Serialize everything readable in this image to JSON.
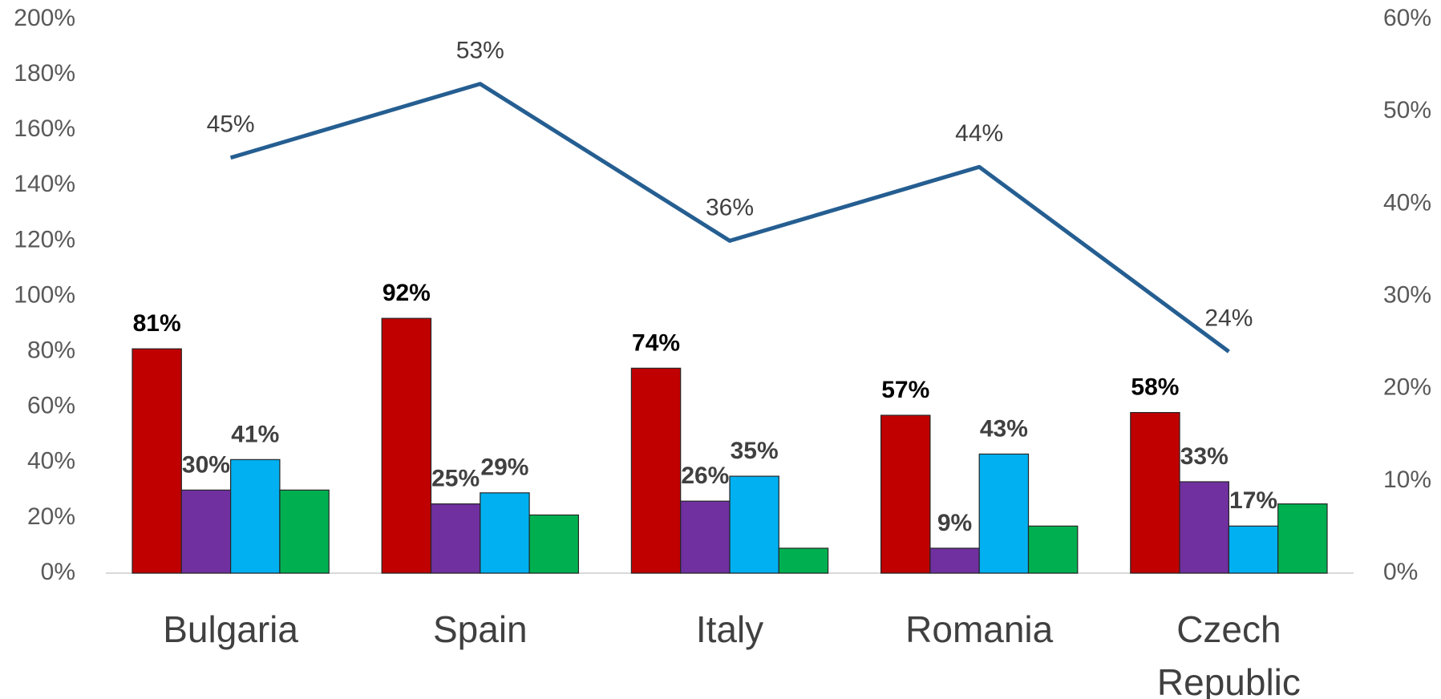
{
  "chart_data": {
    "type": "bar",
    "categories": [
      "Bulgaria",
      "Spain",
      "Italy",
      "Romania",
      "Czech Republic"
    ],
    "series": [
      {
        "color": "#c00000",
        "values": [
          81,
          92,
          74,
          57,
          58
        ],
        "value_labels": [
          "81%",
          "92%",
          "74%",
          "57%",
          "58%"
        ]
      },
      {
        "color": "#7030a0",
        "values": [
          30,
          25,
          26,
          9,
          33
        ],
        "value_labels": [
          "30%",
          "25%",
          "26%",
          "9%",
          "33%"
        ]
      },
      {
        "color": "#00b0f0",
        "values": [
          41,
          29,
          35,
          43,
          17
        ],
        "value_labels": [
          "41%",
          "29%",
          "35%",
          "43%",
          "17%"
        ]
      },
      {
        "color": "#00b050",
        "values": [
          30,
          21,
          9,
          17,
          25
        ]
      },
      {
        "type": "line",
        "axis": "y2",
        "color": "#255e91",
        "values": [
          45,
          53,
          36,
          44,
          24
        ],
        "value_labels": [
          "45%",
          "53%",
          "36%",
          "44%",
          "24%"
        ]
      }
    ],
    "ylim": [
      0,
      200
    ],
    "yticks": [
      {
        "value": 0,
        "label": "0%"
      },
      {
        "value": 20,
        "label": "20%"
      },
      {
        "value": 40,
        "label": "40%"
      },
      {
        "value": 60,
        "label": "60%"
      },
      {
        "value": 80,
        "label": "80%"
      },
      {
        "value": 100,
        "label": "100%"
      },
      {
        "value": 120,
        "label": "120%"
      },
      {
        "value": 140,
        "label": "140%"
      },
      {
        "value": 160,
        "label": "160%"
      },
      {
        "value": 180,
        "label": "180%"
      },
      {
        "value": 200,
        "label": "200%"
      }
    ],
    "y2lim": [
      0,
      60
    ],
    "y2ticks": [
      {
        "value": 0,
        "label": "0%"
      },
      {
        "value": 10,
        "label": "10%"
      },
      {
        "value": 20,
        "label": "20%"
      },
      {
        "value": 30,
        "label": "30%"
      },
      {
        "value": 40,
        "label": "40%"
      },
      {
        "value": 50,
        "label": "50%"
      },
      {
        "value": 60,
        "label": "60%"
      }
    ]
  }
}
